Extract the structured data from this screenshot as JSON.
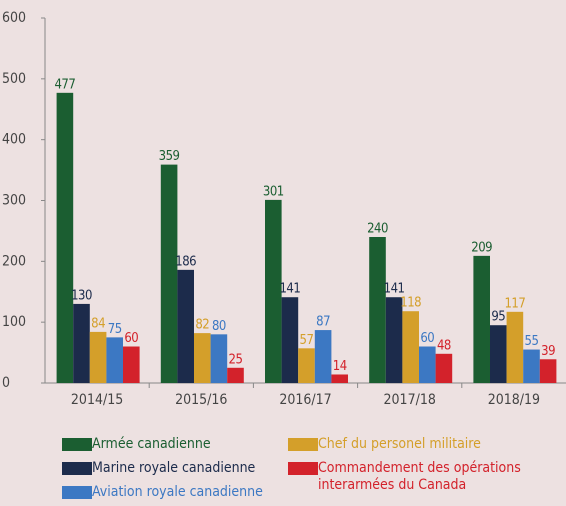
{
  "chart_data": {
    "type": "bar",
    "categories": [
      "2014/15",
      "2015/16",
      "2016/17",
      "2017/18",
      "2018/19"
    ],
    "series": [
      {
        "name": "Armée canadienne",
        "color": "#1b5e31",
        "values": [
          477,
          359,
          301,
          240,
          209
        ]
      },
      {
        "name": "Marine royale canadienne",
        "color": "#1c2b4b",
        "values": [
          130,
          186,
          141,
          141,
          95
        ]
      },
      {
        "name": "Chef du personel militaire",
        "color": "#d49f2a",
        "values": [
          84,
          82,
          57,
          118,
          117
        ]
      },
      {
        "name": "Aviation royale canadienne",
        "color": "#3c78c3",
        "values": [
          75,
          80,
          87,
          60,
          55
        ]
      },
      {
        "name": "Commandement des opérations interarmées du Canada",
        "color": "#d3222b",
        "values": [
          60,
          25,
          14,
          48,
          39
        ]
      }
    ],
    "ylim": [
      0,
      600
    ],
    "yticks": [
      0,
      100,
      200,
      300,
      400,
      500,
      600
    ],
    "grid": false
  }
}
